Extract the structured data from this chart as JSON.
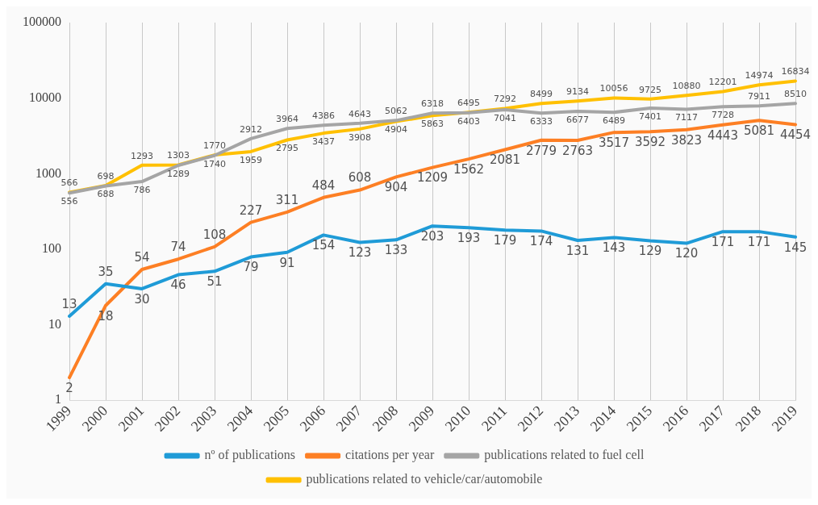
{
  "chart_data": {
    "type": "line",
    "categories": [
      "1999",
      "2000",
      "2001",
      "2002",
      "2003",
      "2004",
      "2005",
      "2006",
      "2007",
      "2008",
      "2009",
      "2010",
      "2011",
      "2012",
      "2013",
      "2014",
      "2015",
      "2016",
      "2017",
      "2018",
      "2019"
    ],
    "series": [
      {
        "name": "nº of publications",
        "color": "#1f9bd7",
        "values": [
          13,
          35,
          30,
          46,
          51,
          79,
          91,
          154,
          123,
          133,
          203,
          193,
          179,
          174,
          131,
          143,
          129,
          120,
          171,
          171,
          145
        ]
      },
      {
        "name": "citations per year",
        "color": "#fd7f24",
        "values": [
          2,
          18,
          54,
          74,
          108,
          227,
          311,
          484,
          608,
          904,
          1209,
          1562,
          2081,
          2779,
          2763,
          3517,
          3592,
          3823,
          4443,
          5081,
          4454
        ]
      },
      {
        "name": "publications related to fuel cell",
        "color": "#a5a5a5",
        "values": [
          556,
          688,
          786,
          1289,
          1740,
          2912,
          3964,
          4386,
          4643,
          5062,
          6318,
          6403,
          7041,
          6333,
          6677,
          6489,
          7401,
          7117,
          7728,
          7911,
          8510
        ]
      },
      {
        "name": "publications related to vehicle/car/automobile",
        "color": "#ffc000",
        "values": [
          566,
          698,
          1293,
          1303,
          1770,
          1959,
          2795,
          3437,
          3908,
          4904,
          5863,
          6495,
          7292,
          8499,
          9134,
          10056,
          9725,
          10880,
          12201,
          14974,
          16834
        ]
      }
    ],
    "log": true,
    "ylim": [
      1,
      100000
    ],
    "yticks": [
      1,
      10,
      100,
      1000,
      10000,
      100000
    ],
    "grid": "x",
    "legend": "bottom",
    "data_labels": true,
    "marker": "none",
    "line_style": "solid"
  }
}
